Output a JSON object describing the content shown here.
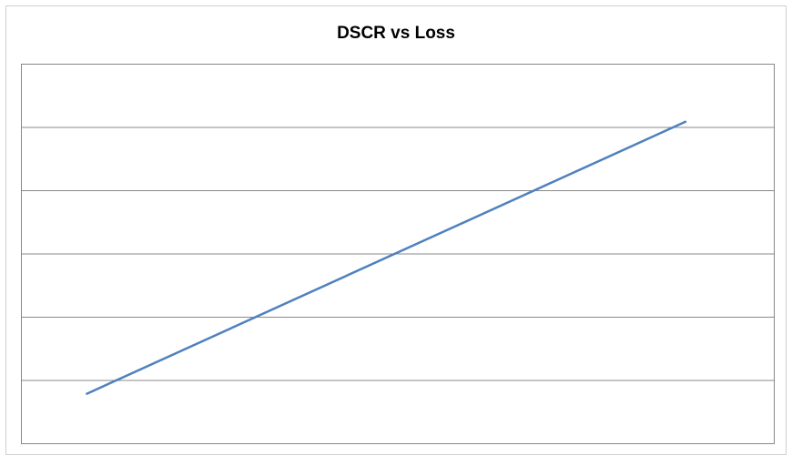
{
  "chart_data": {
    "type": "line",
    "title": "DSCR vs Loss",
    "x": [
      0.087,
      0.882
    ],
    "series": [
      {
        "color": "#4f81bd",
        "values": [
          0.79,
          5.09
        ]
      }
    ],
    "xlim": [
      0,
      1
    ],
    "ylim": [
      0,
      6
    ],
    "yticks": [
      0,
      1,
      2,
      3,
      4,
      5,
      6
    ],
    "grid": true
  }
}
